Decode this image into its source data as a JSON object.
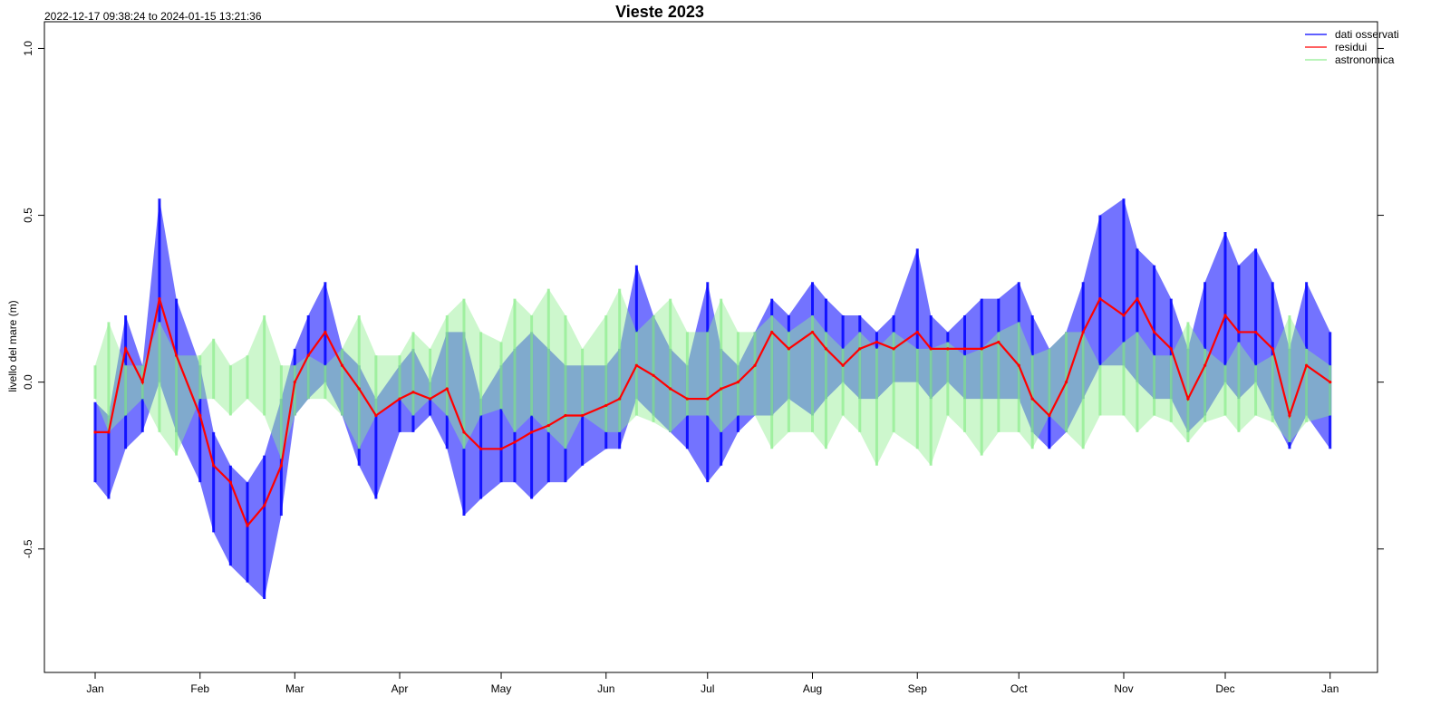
{
  "chart_data": {
    "type": "line",
    "title": "Vieste 2023",
    "subtitle": "2022-12-17 09:38:24 to 2024-01-15 13:21:36",
    "xlabel": "",
    "ylabel": "livello del mare (m)",
    "xlim": [
      "2022-12-17",
      "2024-01-15"
    ],
    "ylim": [
      -0.87,
      1.08
    ],
    "x_ticks": [
      "Jan",
      "Feb",
      "Mar",
      "Apr",
      "May",
      "Jun",
      "Jul",
      "Aug",
      "Sep",
      "Oct",
      "Nov",
      "Dec",
      "Jan"
    ],
    "x_tick_dates": [
      "2023-01-01",
      "2023-02-01",
      "2023-03-01",
      "2023-04-01",
      "2023-05-01",
      "2023-06-01",
      "2023-07-01",
      "2023-08-01",
      "2023-09-01",
      "2023-10-01",
      "2023-11-01",
      "2023-12-01",
      "2024-01-01"
    ],
    "y_ticks": [
      -0.5,
      0.0,
      0.5,
      1.0
    ],
    "y_tick_labels": [
      "-0.5",
      "0.0",
      "0.5",
      "1.0"
    ],
    "grid": false,
    "legend_position": "top-right",
    "series": [
      {
        "name": "dati osservati",
        "color": "#0000ff",
        "kind": "daily min/max envelope",
        "x": [
          "2023-01-01",
          "2023-01-05",
          "2023-01-10",
          "2023-01-15",
          "2023-01-20",
          "2023-01-25",
          "2023-02-01",
          "2023-02-05",
          "2023-02-10",
          "2023-02-15",
          "2023-02-20",
          "2023-02-25",
          "2023-03-01",
          "2023-03-05",
          "2023-03-10",
          "2023-03-15",
          "2023-03-20",
          "2023-03-25",
          "2023-04-01",
          "2023-04-05",
          "2023-04-10",
          "2023-04-15",
          "2023-04-20",
          "2023-04-25",
          "2023-05-01",
          "2023-05-05",
          "2023-05-10",
          "2023-05-15",
          "2023-05-20",
          "2023-05-25",
          "2023-06-01",
          "2023-06-05",
          "2023-06-10",
          "2023-06-15",
          "2023-06-20",
          "2023-06-25",
          "2023-07-01",
          "2023-07-05",
          "2023-07-10",
          "2023-07-15",
          "2023-07-20",
          "2023-07-25",
          "2023-08-01",
          "2023-08-05",
          "2023-08-10",
          "2023-08-15",
          "2023-08-20",
          "2023-08-25",
          "2023-09-01",
          "2023-09-05",
          "2023-09-10",
          "2023-09-15",
          "2023-09-20",
          "2023-09-25",
          "2023-10-01",
          "2023-10-05",
          "2023-10-10",
          "2023-10-15",
          "2023-10-20",
          "2023-10-25",
          "2023-11-01",
          "2023-11-05",
          "2023-11-10",
          "2023-11-15",
          "2023-11-20",
          "2023-11-25",
          "2023-12-01",
          "2023-12-05",
          "2023-12-10",
          "2023-12-15",
          "2023-12-20",
          "2023-12-25",
          "2024-01-01"
        ],
        "y_max": [
          -0.06,
          -0.1,
          0.2,
          0.05,
          0.55,
          0.25,
          0.05,
          -0.15,
          -0.25,
          -0.3,
          -0.22,
          -0.05,
          0.1,
          0.2,
          0.3,
          0.1,
          0.05,
          -0.05,
          0.05,
          0.1,
          0.0,
          0.15,
          0.15,
          -0.05,
          0.05,
          0.1,
          0.15,
          0.1,
          0.05,
          0.05,
          0.05,
          0.1,
          0.35,
          0.2,
          0.1,
          0.05,
          0.3,
          0.1,
          0.05,
          0.15,
          0.25,
          0.2,
          0.3,
          0.25,
          0.2,
          0.2,
          0.15,
          0.2,
          0.4,
          0.2,
          0.15,
          0.2,
          0.25,
          0.25,
          0.3,
          0.2,
          0.1,
          0.15,
          0.3,
          0.5,
          0.55,
          0.4,
          0.35,
          0.25,
          0.1,
          0.3,
          0.45,
          0.35,
          0.4,
          0.3,
          0.1,
          0.3,
          0.15
        ],
        "y_min": [
          -0.3,
          -0.35,
          -0.2,
          -0.15,
          0.0,
          -0.15,
          -0.3,
          -0.45,
          -0.55,
          -0.6,
          -0.65,
          -0.4,
          -0.1,
          -0.05,
          0.0,
          -0.1,
          -0.25,
          -0.35,
          -0.15,
          -0.15,
          -0.1,
          -0.2,
          -0.4,
          -0.35,
          -0.3,
          -0.3,
          -0.35,
          -0.3,
          -0.3,
          -0.25,
          -0.2,
          -0.2,
          -0.05,
          -0.1,
          -0.15,
          -0.2,
          -0.3,
          -0.25,
          -0.15,
          -0.1,
          -0.1,
          -0.05,
          -0.1,
          -0.05,
          0.0,
          -0.05,
          -0.05,
          0.0,
          0.0,
          -0.05,
          0.0,
          -0.05,
          -0.05,
          -0.05,
          -0.05,
          -0.15,
          -0.2,
          -0.15,
          -0.05,
          0.05,
          0.05,
          0.0,
          -0.05,
          -0.05,
          -0.15,
          -0.1,
          0.0,
          -0.05,
          0.0,
          -0.1,
          -0.2,
          -0.1,
          -0.2
        ]
      },
      {
        "name": "residui",
        "color": "#ff0000",
        "kind": "daily line",
        "x": [
          "2023-01-01",
          "2023-01-05",
          "2023-01-10",
          "2023-01-15",
          "2023-01-20",
          "2023-01-25",
          "2023-02-01",
          "2023-02-05",
          "2023-02-10",
          "2023-02-15",
          "2023-02-20",
          "2023-02-25",
          "2023-03-01",
          "2023-03-05",
          "2023-03-10",
          "2023-03-15",
          "2023-03-20",
          "2023-03-25",
          "2023-04-01",
          "2023-04-05",
          "2023-04-10",
          "2023-04-15",
          "2023-04-20",
          "2023-04-25",
          "2023-05-01",
          "2023-05-05",
          "2023-05-10",
          "2023-05-15",
          "2023-05-20",
          "2023-05-25",
          "2023-06-01",
          "2023-06-05",
          "2023-06-10",
          "2023-06-15",
          "2023-06-20",
          "2023-06-25",
          "2023-07-01",
          "2023-07-05",
          "2023-07-10",
          "2023-07-15",
          "2023-07-20",
          "2023-07-25",
          "2023-08-01",
          "2023-08-05",
          "2023-08-10",
          "2023-08-15",
          "2023-08-20",
          "2023-08-25",
          "2023-09-01",
          "2023-09-05",
          "2023-09-10",
          "2023-09-15",
          "2023-09-20",
          "2023-09-25",
          "2023-10-01",
          "2023-10-05",
          "2023-10-10",
          "2023-10-15",
          "2023-10-20",
          "2023-10-25",
          "2023-11-01",
          "2023-11-05",
          "2023-11-10",
          "2023-11-15",
          "2023-11-20",
          "2023-11-25",
          "2023-12-01",
          "2023-12-05",
          "2023-12-10",
          "2023-12-15",
          "2023-12-20",
          "2023-12-25",
          "2024-01-01"
        ],
        "y": [
          -0.15,
          -0.15,
          0.1,
          0.0,
          0.25,
          0.08,
          -0.1,
          -0.25,
          -0.3,
          -0.43,
          -0.37,
          -0.25,
          0.0,
          0.08,
          0.15,
          0.05,
          -0.02,
          -0.1,
          -0.05,
          -0.03,
          -0.05,
          -0.02,
          -0.15,
          -0.2,
          -0.2,
          -0.18,
          -0.15,
          -0.13,
          -0.1,
          -0.1,
          -0.07,
          -0.05,
          0.05,
          0.02,
          -0.02,
          -0.05,
          -0.05,
          -0.02,
          0.0,
          0.05,
          0.15,
          0.1,
          0.15,
          0.1,
          0.05,
          0.1,
          0.12,
          0.1,
          0.15,
          0.1,
          0.1,
          0.1,
          0.1,
          0.12,
          0.05,
          -0.05,
          -0.1,
          0.0,
          0.15,
          0.25,
          0.2,
          0.25,
          0.15,
          0.1,
          -0.05,
          0.05,
          0.2,
          0.15,
          0.15,
          0.1,
          -0.1,
          0.05,
          0.0
        ]
      },
      {
        "name": "astronomica",
        "color": "#90ee90",
        "kind": "daily min/max envelope",
        "x": [
          "2023-01-01",
          "2023-01-05",
          "2023-01-10",
          "2023-01-15",
          "2023-01-20",
          "2023-01-25",
          "2023-02-01",
          "2023-02-05",
          "2023-02-10",
          "2023-02-15",
          "2023-02-20",
          "2023-02-25",
          "2023-03-01",
          "2023-03-05",
          "2023-03-10",
          "2023-03-15",
          "2023-03-20",
          "2023-03-25",
          "2023-04-01",
          "2023-04-05",
          "2023-04-10",
          "2023-04-15",
          "2023-04-20",
          "2023-04-25",
          "2023-05-01",
          "2023-05-05",
          "2023-05-10",
          "2023-05-15",
          "2023-05-20",
          "2023-05-25",
          "2023-06-01",
          "2023-06-05",
          "2023-06-10",
          "2023-06-15",
          "2023-06-20",
          "2023-06-25",
          "2023-07-01",
          "2023-07-05",
          "2023-07-10",
          "2023-07-15",
          "2023-07-20",
          "2023-07-25",
          "2023-08-01",
          "2023-08-05",
          "2023-08-10",
          "2023-08-15",
          "2023-08-20",
          "2023-08-25",
          "2023-09-01",
          "2023-09-05",
          "2023-09-10",
          "2023-09-15",
          "2023-09-20",
          "2023-09-25",
          "2023-10-01",
          "2023-10-05",
          "2023-10-10",
          "2023-10-15",
          "2023-10-20",
          "2023-10-25",
          "2023-11-01",
          "2023-11-05",
          "2023-11-10",
          "2023-11-15",
          "2023-11-20",
          "2023-11-25",
          "2023-12-01",
          "2023-12-05",
          "2023-12-10",
          "2023-12-15",
          "2023-12-20",
          "2023-12-25",
          "2024-01-01"
        ],
        "y_max": [
          0.05,
          0.18,
          0.05,
          0.05,
          0.18,
          0.08,
          0.08,
          0.13,
          0.05,
          0.08,
          0.2,
          0.05,
          0.05,
          0.08,
          0.05,
          0.1,
          0.2,
          0.08,
          0.08,
          0.15,
          0.1,
          0.2,
          0.25,
          0.15,
          0.12,
          0.25,
          0.2,
          0.28,
          0.2,
          0.1,
          0.2,
          0.28,
          0.15,
          0.2,
          0.25,
          0.15,
          0.15,
          0.25,
          0.15,
          0.15,
          0.2,
          0.15,
          0.2,
          0.15,
          0.1,
          0.15,
          0.1,
          0.15,
          0.1,
          0.1,
          0.12,
          0.08,
          0.1,
          0.15,
          0.18,
          0.08,
          0.1,
          0.15,
          0.15,
          0.05,
          0.12,
          0.15,
          0.08,
          0.08,
          0.18,
          0.1,
          0.05,
          0.12,
          0.05,
          0.08,
          0.2,
          0.1,
          0.05
        ],
        "y_min": [
          -0.05,
          -0.15,
          -0.1,
          -0.05,
          -0.15,
          -0.22,
          -0.05,
          -0.05,
          -0.1,
          -0.05,
          -0.1,
          -0.23,
          -0.1,
          -0.05,
          -0.05,
          -0.1,
          -0.2,
          -0.1,
          -0.05,
          -0.1,
          -0.05,
          -0.1,
          -0.2,
          -0.1,
          -0.08,
          -0.15,
          -0.1,
          -0.15,
          -0.2,
          -0.1,
          -0.15,
          -0.15,
          -0.1,
          -0.12,
          -0.15,
          -0.1,
          -0.1,
          -0.15,
          -0.1,
          -0.1,
          -0.2,
          -0.15,
          -0.15,
          -0.2,
          -0.1,
          -0.15,
          -0.25,
          -0.15,
          -0.2,
          -0.25,
          -0.1,
          -0.15,
          -0.22,
          -0.15,
          -0.15,
          -0.2,
          -0.1,
          -0.15,
          -0.2,
          -0.1,
          -0.1,
          -0.15,
          -0.1,
          -0.12,
          -0.18,
          -0.12,
          -0.1,
          -0.15,
          -0.1,
          -0.12,
          -0.18,
          -0.12,
          -0.1
        ]
      }
    ]
  }
}
